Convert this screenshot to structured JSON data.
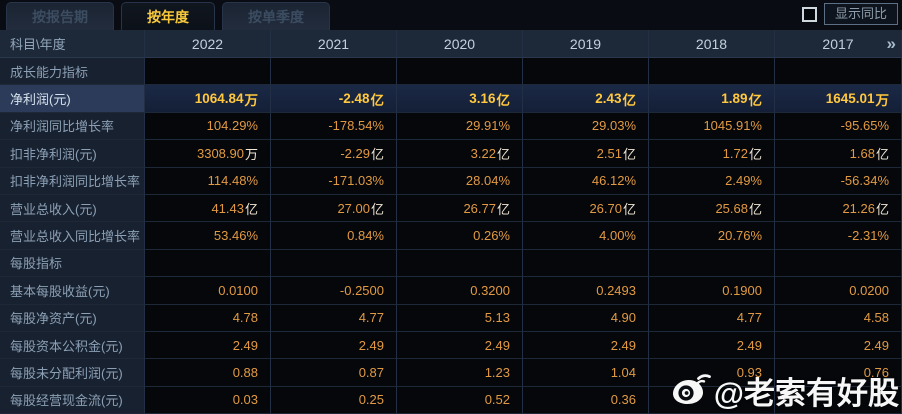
{
  "tabs": [
    {
      "label": "按报告期",
      "active": false
    },
    {
      "label": "按年度",
      "active": true
    },
    {
      "label": "按单季度",
      "active": false
    }
  ],
  "controls": {
    "show_yoy_label": "显示同比",
    "checkbox_checked": false
  },
  "table": {
    "corner_header": "科目\\年度",
    "years": [
      "2022",
      "2021",
      "2020",
      "2019",
      "2018",
      "2017"
    ],
    "more_years_icon": "»",
    "sections": [
      "成长能力指标",
      "每股指标"
    ],
    "rows": [
      {
        "type": "section",
        "label": "成长能力指标",
        "values": [
          "",
          "",
          "",
          "",
          "",
          ""
        ]
      },
      {
        "type": "highlight",
        "label": "净利润(元)",
        "values": [
          "1064.84万",
          "-2.48亿",
          "3.16亿",
          "2.43亿",
          "1.89亿",
          "1645.01万"
        ]
      },
      {
        "type": "data",
        "label": "净利润同比增长率",
        "values": [
          "104.29%",
          "-178.54%",
          "29.91%",
          "29.03%",
          "1045.91%",
          "-95.65%"
        ]
      },
      {
        "type": "data",
        "label": "扣非净利润(元)",
        "values": [
          "3308.90万",
          "-2.29亿",
          "3.22亿",
          "2.51亿",
          "1.72亿",
          "1.68亿"
        ]
      },
      {
        "type": "data",
        "label": "扣非净利润同比增长率",
        "values": [
          "114.48%",
          "-171.03%",
          "28.04%",
          "46.12%",
          "2.49%",
          "-56.34%"
        ]
      },
      {
        "type": "data",
        "label": "营业总收入(元)",
        "values": [
          "41.43亿",
          "27.00亿",
          "26.77亿",
          "26.70亿",
          "25.68亿",
          "21.26亿"
        ]
      },
      {
        "type": "data",
        "label": "营业总收入同比增长率",
        "values": [
          "53.46%",
          "0.84%",
          "0.26%",
          "4.00%",
          "20.76%",
          "-2.31%"
        ]
      },
      {
        "type": "section",
        "label": "每股指标",
        "values": [
          "",
          "",
          "",
          "",
          "",
          ""
        ]
      },
      {
        "type": "data",
        "label": "基本每股收益(元)",
        "values": [
          "0.0100",
          "-0.2500",
          "0.3200",
          "0.2493",
          "0.1900",
          "0.0200"
        ]
      },
      {
        "type": "data",
        "label": "每股净资产(元)",
        "values": [
          "4.78",
          "4.77",
          "5.13",
          "4.90",
          "4.77",
          "4.58"
        ]
      },
      {
        "type": "data",
        "label": "每股资本公积金(元)",
        "values": [
          "2.49",
          "2.49",
          "2.49",
          "2.49",
          "2.49",
          "2.49"
        ]
      },
      {
        "type": "data",
        "label": "每股未分配利润(元)",
        "values": [
          "0.88",
          "0.87",
          "1.23",
          "1.04",
          "0.93",
          "0.76"
        ]
      },
      {
        "type": "data",
        "label": "每股经营现金流(元)",
        "values": [
          "0.03",
          "0.25",
          "0.52",
          "0.36",
          "",
          ""
        ]
      }
    ]
  },
  "watermark": {
    "text": "@老索有好股",
    "icon": "weibo-icon"
  },
  "colors": {
    "accent_gold": "#ffc83e",
    "value_orange": "#e29a42",
    "tab_active_text": "#f8ca3c",
    "header_bg": "#1d2939",
    "label_col_bg": "#18212f",
    "highlight_row_bg": "#1b2946"
  }
}
